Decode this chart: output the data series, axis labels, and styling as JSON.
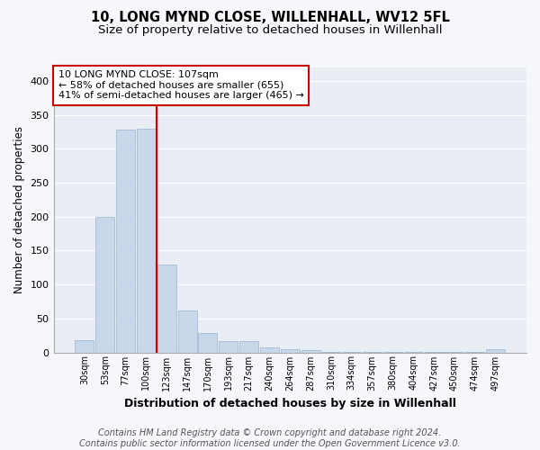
{
  "title": "10, LONG MYND CLOSE, WILLENHALL, WV12 5FL",
  "subtitle": "Size of property relative to detached houses in Willenhall",
  "xlabel": "Distribution of detached houses by size in Willenhall",
  "ylabel": "Number of detached properties",
  "bar_labels": [
    "30sqm",
    "53sqm",
    "77sqm",
    "100sqm",
    "123sqm",
    "147sqm",
    "170sqm",
    "193sqm",
    "217sqm",
    "240sqm",
    "264sqm",
    "287sqm",
    "310sqm",
    "334sqm",
    "357sqm",
    "380sqm",
    "404sqm",
    "427sqm",
    "450sqm",
    "474sqm",
    "497sqm"
  ],
  "bar_values": [
    18,
    200,
    328,
    330,
    130,
    62,
    28,
    16,
    16,
    7,
    4,
    3,
    1,
    1,
    1,
    1,
    1,
    1,
    1,
    1,
    4
  ],
  "bar_color": "#c8d8ea",
  "bar_edgecolor": "#9ab4cc",
  "redline_x": 3.5,
  "redline_color": "#cc0000",
  "annotation_text": "10 LONG MYND CLOSE: 107sqm\n← 58% of detached houses are smaller (655)\n41% of semi-detached houses are larger (465) →",
  "ylim": [
    0,
    420
  ],
  "yticks": [
    0,
    50,
    100,
    150,
    200,
    250,
    300,
    350,
    400
  ],
  "plot_bg_color": "#e8eef4",
  "fig_bg_color": "#f5f7fa",
  "grid_color": "#ffffff",
  "footer_line1": "Contains HM Land Registry data © Crown copyright and database right 2024.",
  "footer_line2": "Contains public sector information licensed under the Open Government Licence v3.0.",
  "title_fontsize": 10.5,
  "subtitle_fontsize": 9.5,
  "annotation_fontsize": 8,
  "tick_fontsize": 7,
  "ylabel_fontsize": 8.5,
  "xlabel_fontsize": 9,
  "footer_fontsize": 7
}
